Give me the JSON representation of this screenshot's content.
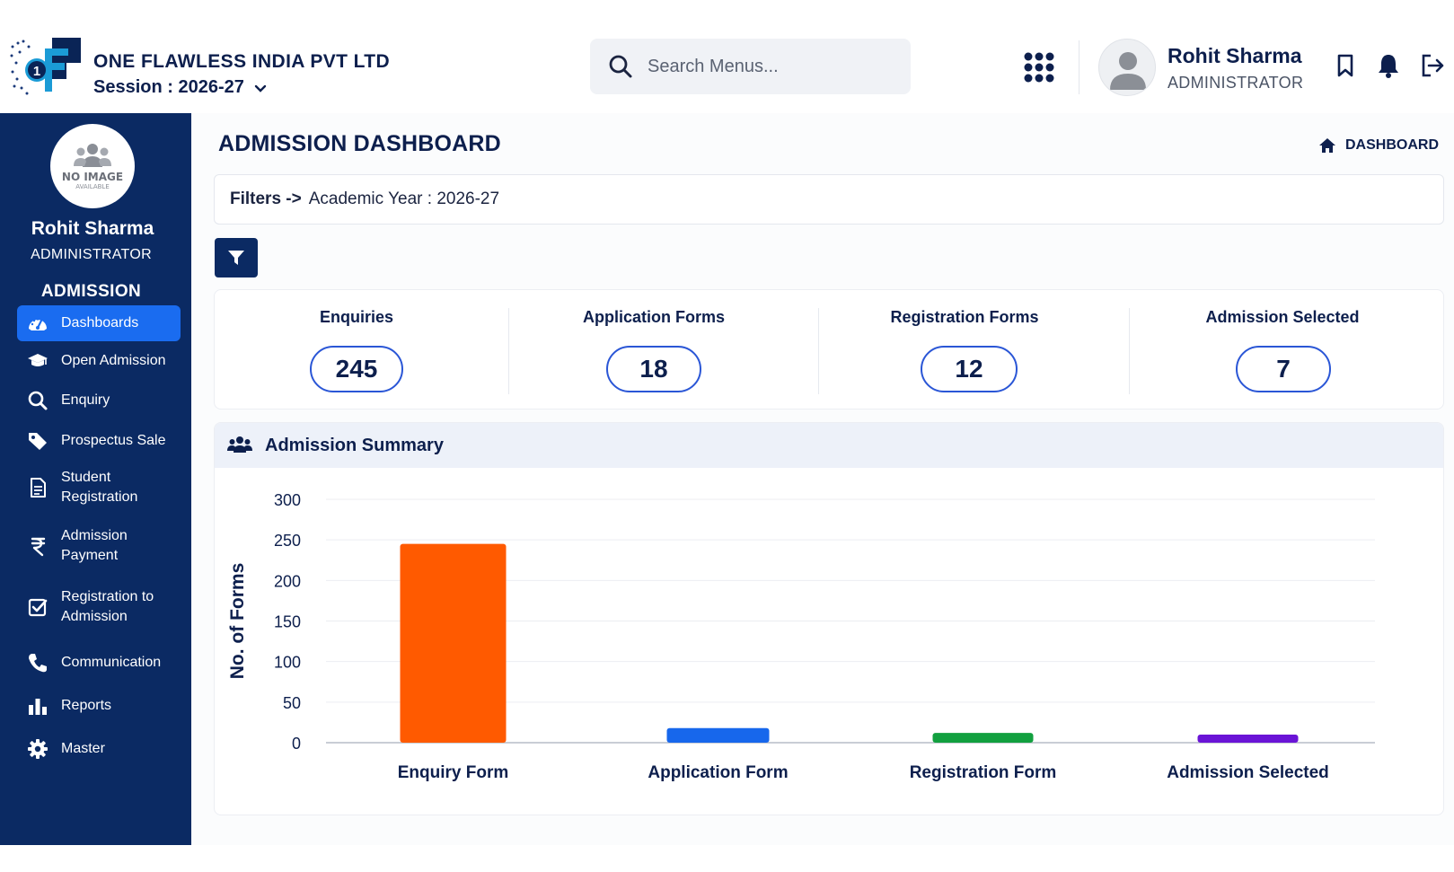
{
  "header": {
    "company_name": "ONE FLAWLESS INDIA PVT LTD",
    "session_label": "Session : 2026-27",
    "search_placeholder": "Search Menus...",
    "user_name": "Rohit Sharma",
    "user_role": "ADMINISTRATOR"
  },
  "sidebar": {
    "no_image": "NO IMAGE",
    "available": "AVAILABLE",
    "user_name": "Rohit Sharma",
    "user_role": "ADMINISTRATOR",
    "section": "ADMISSION",
    "items": [
      {
        "label": "Dashboards",
        "icon": "dashboard-gauge-icon",
        "active": true
      },
      {
        "label": "Open Admission",
        "icon": "graduation-cap-icon"
      },
      {
        "label": "Enquiry",
        "icon": "search-icon"
      },
      {
        "label": "Prospectus Sale",
        "icon": "tag-icon"
      },
      {
        "label": "Student Registration",
        "icon": "document-icon"
      },
      {
        "label": "Admission Payment",
        "icon": "rupee-icon"
      },
      {
        "label": "Registration to Admission",
        "icon": "checkbox-icon"
      },
      {
        "label": "Communication",
        "icon": "phone-icon"
      },
      {
        "label": "Reports",
        "icon": "bar-chart-icon"
      },
      {
        "label": "Master",
        "icon": "gear-icon"
      }
    ]
  },
  "main": {
    "title": "ADMISSION DASHBOARD",
    "breadcrumb": "DASHBOARD",
    "filters_label": "Filters ->",
    "filters_value": "Academic Year : 2026-27"
  },
  "stats": [
    {
      "label": "Enquiries",
      "value": "245"
    },
    {
      "label": "Application Forms",
      "value": "18"
    },
    {
      "label": "Registration Forms",
      "value": "12"
    },
    {
      "label": "Admission Selected",
      "value": "7"
    }
  ],
  "summary": {
    "title": "Admission Summary"
  },
  "chart_data": {
    "type": "bar",
    "title": "Admission Summary",
    "categories": [
      "Enquiry Form",
      "Application Form",
      "Registration Form",
      "Admission Selected"
    ],
    "values": [
      245,
      18,
      12,
      7
    ],
    "colors": [
      "#ff5a00",
      "#1767ec",
      "#12a03f",
      "#6a14d6"
    ],
    "ylabel": "No. of Forms",
    "xlabel": "",
    "ylim": [
      0,
      300
    ],
    "yticks": [
      0,
      50,
      100,
      150,
      200,
      250,
      300
    ],
    "grid": true
  },
  "colors": {
    "sidebar_bg": "#0b2a63",
    "active_item": "#1a6cf0",
    "pill_border": "#2a56d6"
  }
}
